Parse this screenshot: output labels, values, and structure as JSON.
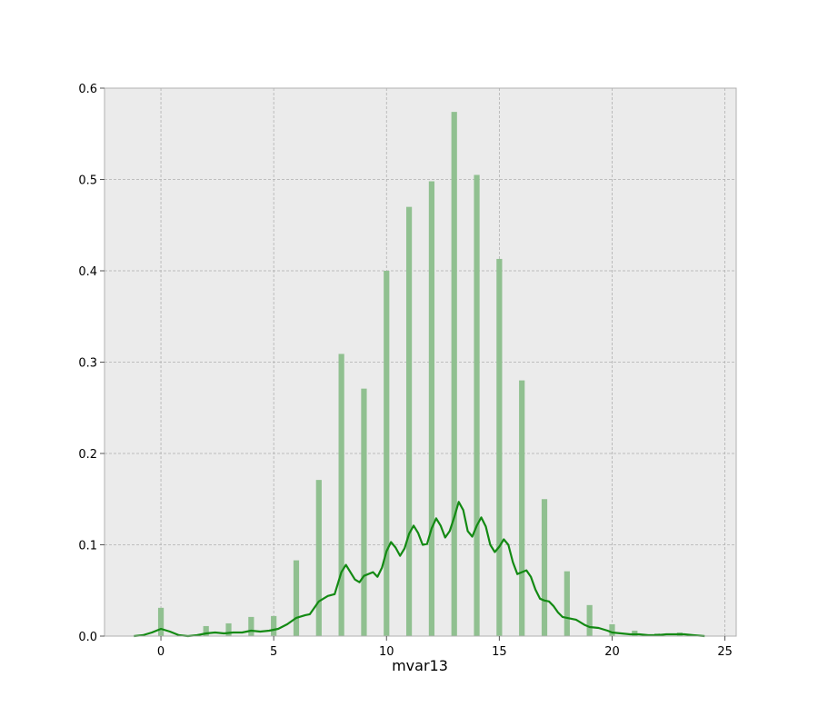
{
  "chart_data": {
    "type": "bar",
    "title": "",
    "xlabel": "mvar13",
    "ylabel": "",
    "xlim": [
      -2.5,
      25.5
    ],
    "ylim": [
      0,
      0.6
    ],
    "x_ticks": [
      0,
      5,
      10,
      15,
      20,
      25
    ],
    "y_ticks": [
      0.0,
      0.1,
      0.2,
      0.3,
      0.4,
      0.5,
      0.6
    ],
    "x_tick_labels": [
      "0",
      "5",
      "10",
      "15",
      "20",
      "25"
    ],
    "y_tick_labels": [
      "0.0",
      "0.1",
      "0.2",
      "0.3",
      "0.4",
      "0.5",
      "0.6"
    ],
    "grid": true,
    "bar_width": 0.25,
    "colors": {
      "plot_background": "#ebebeb",
      "grid": "#b0b0b0",
      "frame": "#b0b0b0",
      "bar": "#90c090",
      "line": "#138a13"
    },
    "series": [
      {
        "kind": "histogram",
        "x": [
          0,
          2,
          3,
          4,
          5,
          6,
          7,
          8,
          9,
          10,
          11,
          12,
          13,
          14,
          15,
          16,
          17,
          18,
          19,
          20,
          21,
          22,
          23
        ],
        "values": [
          0.031,
          0.011,
          0.014,
          0.021,
          0.022,
          0.083,
          0.171,
          0.309,
          0.271,
          0.4,
          0.47,
          0.498,
          0.574,
          0.505,
          0.413,
          0.28,
          0.15,
          0.071,
          0.034,
          0.013,
          0.006,
          0.003,
          0.004
        ]
      },
      {
        "kind": "kde",
        "x": [
          -1.2,
          -0.8,
          -0.4,
          0,
          0.4,
          0.8,
          1.2,
          1.6,
          2,
          2.4,
          2.8,
          3.2,
          3.6,
          4,
          4.4,
          4.8,
          5.2,
          5.6,
          6,
          6.4,
          6.6,
          7,
          7.4,
          7.7,
          8,
          8.2,
          8.6,
          8.8,
          9,
          9.4,
          9.6,
          9.8,
          10,
          10.2,
          10.4,
          10.6,
          10.8,
          11,
          11.2,
          11.4,
          11.6,
          11.8,
          12,
          12.2,
          12.4,
          12.6,
          12.8,
          13,
          13.2,
          13.4,
          13.6,
          13.8,
          14,
          14.2,
          14.4,
          14.6,
          14.8,
          15,
          15.2,
          15.4,
          15.6,
          15.8,
          16,
          16.2,
          16.4,
          16.6,
          16.8,
          17,
          17.2,
          17.4,
          17.6,
          17.8,
          18,
          18.4,
          18.8,
          19,
          19.4,
          19.8,
          20,
          20.4,
          20.8,
          21.2,
          21.6,
          22,
          22.4,
          22.8,
          23.2,
          23.6,
          24.1
        ],
        "values": [
          0.0,
          0.001,
          0.004,
          0.008,
          0.005,
          0.001,
          0.0,
          0.001,
          0.003,
          0.004,
          0.003,
          0.004,
          0.004,
          0.006,
          0.005,
          0.006,
          0.008,
          0.013,
          0.02,
          0.023,
          0.024,
          0.038,
          0.044,
          0.046,
          0.07,
          0.078,
          0.062,
          0.059,
          0.066,
          0.07,
          0.065,
          0.075,
          0.093,
          0.103,
          0.097,
          0.088,
          0.096,
          0.112,
          0.121,
          0.113,
          0.1,
          0.101,
          0.118,
          0.129,
          0.121,
          0.108,
          0.115,
          0.13,
          0.147,
          0.138,
          0.115,
          0.109,
          0.121,
          0.13,
          0.12,
          0.1,
          0.092,
          0.098,
          0.106,
          0.1,
          0.081,
          0.068,
          0.07,
          0.072,
          0.065,
          0.051,
          0.041,
          0.039,
          0.038,
          0.033,
          0.026,
          0.021,
          0.02,
          0.018,
          0.012,
          0.01,
          0.009,
          0.006,
          0.004,
          0.003,
          0.002,
          0.002,
          0.001,
          0.001,
          0.002,
          0.002,
          0.002,
          0.001,
          0.0
        ]
      }
    ]
  }
}
